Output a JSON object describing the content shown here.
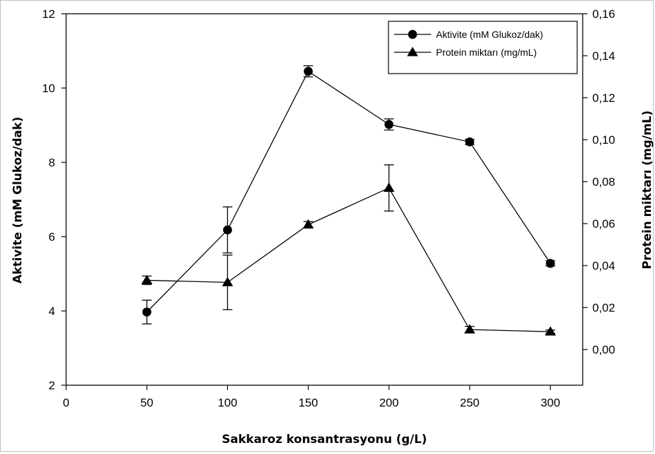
{
  "chart_data": {
    "type": "line",
    "xlabel": "Sakkaroz konsantrasyonu (g/L)",
    "ylabel_left": "Aktivite (mM Glukoz/dak)",
    "ylabel_right": "Protein miktarı (mg/mL)",
    "x_ticks": [
      "0",
      "50",
      "100",
      "150",
      "200",
      "250",
      "300"
    ],
    "y_left_ticks": [
      "2",
      "4",
      "6",
      "8",
      "10",
      "12"
    ],
    "y_right_ticks": [
      "0,00",
      "0,02",
      "0,04",
      "0,06",
      "0,08",
      "0,10",
      "0,12",
      "0,14",
      "0,16"
    ],
    "xlim": [
      0,
      320
    ],
    "ylim_left": [
      2,
      12
    ],
    "ylim_right": [
      -0.017,
      0.16
    ],
    "legend_position": "top-right",
    "series": [
      {
        "name": "Aktivite (mM Glukoz/dak)",
        "axis": "left",
        "marker": "circle",
        "x": [
          50,
          100,
          150,
          200,
          250,
          300
        ],
        "y": [
          3.97,
          6.18,
          10.45,
          9.02,
          8.55,
          5.28
        ],
        "err": [
          0.32,
          0.62,
          0.15,
          0.15,
          0.07,
          0.07
        ]
      },
      {
        "name": "Protein miktarı (mg/mL)",
        "axis": "right",
        "marker": "triangle",
        "x": [
          50,
          100,
          150,
          200,
          250,
          300
        ],
        "y": [
          0.033,
          0.032,
          0.0595,
          0.077,
          0.0095,
          0.0085
        ],
        "err": [
          0.002,
          0.013,
          0.0015,
          0.011,
          0.0015,
          0.0008
        ]
      }
    ]
  }
}
